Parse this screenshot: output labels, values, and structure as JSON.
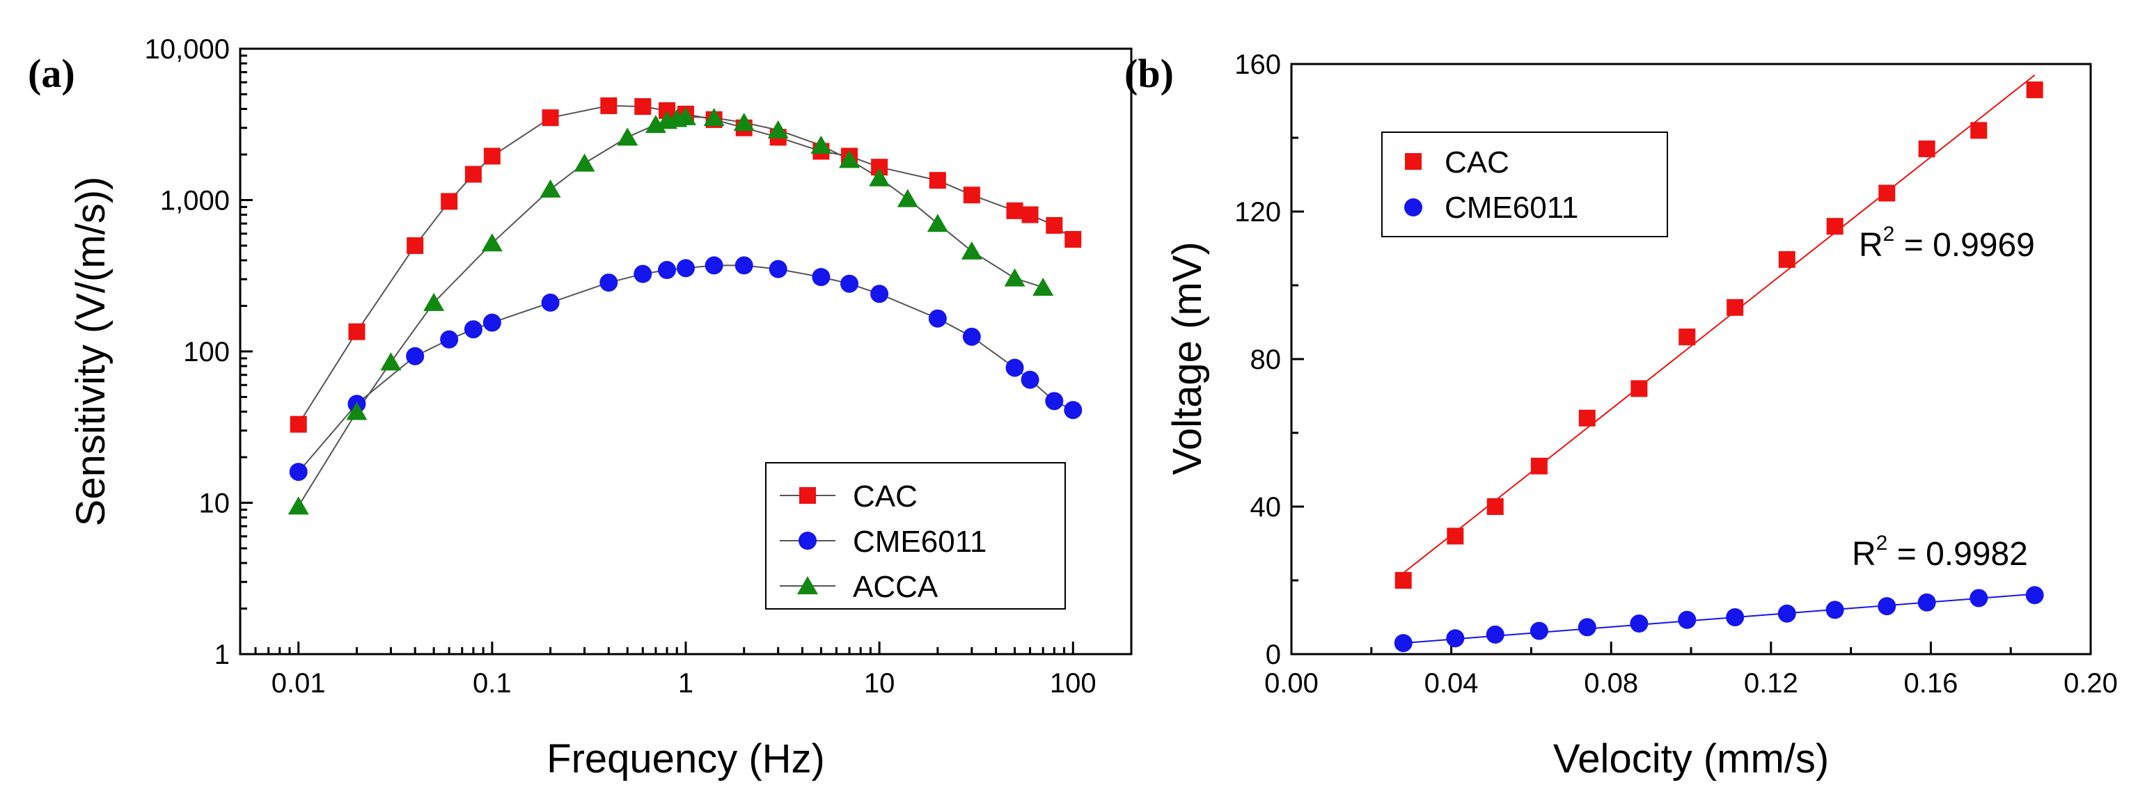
{
  "chart_data": [
    {
      "panel": "(a)",
      "type": "line",
      "xscale": "log",
      "yscale": "log",
      "xlabel": "Frequency  (Hz)",
      "ylabel": "Sensitivity  (V/(m/s))",
      "xlim": [
        0.005,
        200
      ],
      "ylim": [
        1,
        10000
      ],
      "xticks": [
        {
          "v": 0.01,
          "label": "0.01"
        },
        {
          "v": 0.1,
          "label": "0.1"
        },
        {
          "v": 1,
          "label": "1"
        },
        {
          "v": 10,
          "label": "10"
        },
        {
          "v": 100,
          "label": "100"
        }
      ],
      "yticks": [
        {
          "v": 1,
          "label": "1"
        },
        {
          "v": 10,
          "label": "10"
        },
        {
          "v": 100,
          "label": "100"
        },
        {
          "v": 1000,
          "label": "1,000"
        },
        {
          "v": 10000,
          "label": "10,000"
        }
      ],
      "legend_position": "bottom-right",
      "series": [
        {
          "name": "CAC",
          "color": "#ee1111",
          "marker": "square",
          "x": [
            0.01,
            0.02,
            0.04,
            0.06,
            0.08,
            0.1,
            0.2,
            0.4,
            0.6,
            0.8,
            1,
            1.4,
            2,
            3,
            5,
            7,
            10,
            20,
            30,
            50,
            60,
            80,
            100
          ],
          "y": [
            33,
            135,
            500,
            980,
            1480,
            1950,
            3500,
            4200,
            4150,
            3900,
            3700,
            3400,
            3000,
            2600,
            2100,
            1950,
            1650,
            1350,
            1080,
            850,
            800,
            680,
            550
          ]
        },
        {
          "name": "CME6011",
          "color": "#1515ee",
          "marker": "circle",
          "x": [
            0.01,
            0.02,
            0.04,
            0.06,
            0.08,
            0.1,
            0.2,
            0.4,
            0.6,
            0.8,
            1,
            1.4,
            2,
            3,
            5,
            7,
            10,
            20,
            30,
            50,
            60,
            80,
            100
          ],
          "y": [
            16,
            45,
            93,
            120,
            140,
            155,
            210,
            285,
            325,
            345,
            355,
            370,
            370,
            350,
            310,
            280,
            240,
            165,
            125,
            78,
            65,
            47,
            41
          ]
        },
        {
          "name": "ACCA",
          "color": "#118811",
          "marker": "triangle",
          "x": [
            0.01,
            0.02,
            0.03,
            0.05,
            0.1,
            0.2,
            0.3,
            0.5,
            0.7,
            0.8,
            0.9,
            1,
            1.4,
            2,
            3,
            5,
            7,
            10,
            14,
            20,
            30,
            50,
            70
          ],
          "y": [
            9.5,
            40,
            85,
            210,
            520,
            1180,
            1750,
            2600,
            3150,
            3350,
            3450,
            3550,
            3500,
            3250,
            2900,
            2300,
            1850,
            1400,
            1020,
            700,
            460,
            305,
            265
          ]
        }
      ]
    },
    {
      "panel": "(b)",
      "type": "scatter",
      "xlabel": "Velocity  (mm/s)",
      "ylabel": "Voltage  (mV)",
      "xlim": [
        0,
        0.2
      ],
      "ylim": [
        0,
        160
      ],
      "xticks": [
        {
          "v": 0,
          "label": "0.00"
        },
        {
          "v": 0.04,
          "label": "0.04"
        },
        {
          "v": 0.08,
          "label": "0.08"
        },
        {
          "v": 0.12,
          "label": "0.12"
        },
        {
          "v": 0.16,
          "label": "0.16"
        },
        {
          "v": 0.2,
          "label": "0.20"
        }
      ],
      "yticks": [
        {
          "v": 0,
          "label": "0"
        },
        {
          "v": 40,
          "label": "40"
        },
        {
          "v": 80,
          "label": "80"
        },
        {
          "v": 120,
          "label": "120"
        },
        {
          "v": 160,
          "label": "160"
        }
      ],
      "legend_position": "top-left",
      "series": [
        {
          "name": "CAC",
          "color": "#ee1111",
          "marker": "square",
          "x": [
            0.028,
            0.041,
            0.051,
            0.062,
            0.074,
            0.087,
            0.099,
            0.111,
            0.124,
            0.136,
            0.149,
            0.159,
            0.172,
            0.186
          ],
          "y": [
            20,
            32,
            40,
            51,
            64,
            72,
            86,
            94,
            107,
            116,
            125,
            137,
            142,
            153
          ],
          "fit": {
            "x": [
              0.028,
              0.186
            ],
            "y": [
              22,
              157
            ],
            "r2_base": "R",
            "r2_exp": "2",
            "r2_value": " = 0.9969"
          }
        },
        {
          "name": "CME6011",
          "color": "#1515ee",
          "marker": "circle",
          "x": [
            0.028,
            0.041,
            0.051,
            0.062,
            0.074,
            0.087,
            0.099,
            0.111,
            0.124,
            0.136,
            0.149,
            0.159,
            0.172,
            0.186
          ],
          "y": [
            3,
            4.3,
            5.3,
            6.3,
            7.3,
            8.3,
            9.3,
            10,
            11,
            12,
            13,
            14,
            15.2,
            16
          ],
          "fit": {
            "x": [
              0.028,
              0.186
            ],
            "y": [
              3,
              16.3
            ],
            "r2_base": "R",
            "r2_exp": "2",
            "r2_value": " = 0.9982"
          }
        }
      ]
    }
  ]
}
